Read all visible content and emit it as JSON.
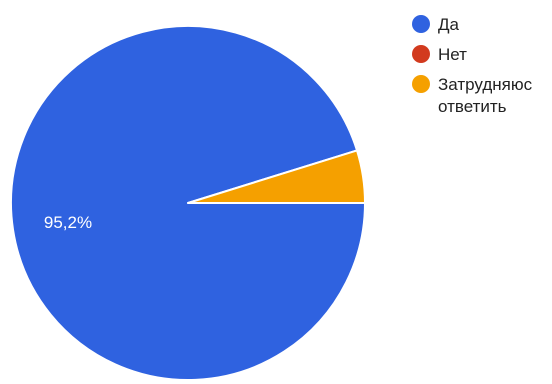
{
  "chart_data": {
    "type": "pie",
    "slices": [
      {
        "label": "Да",
        "value": 95.2,
        "display": "95,2%",
        "color": "#2f62e0"
      },
      {
        "label": "Нет",
        "value": 0,
        "display": "",
        "color": "#d23a1e"
      },
      {
        "label": [
          "Затрудняюс",
          "ответить"
        ],
        "value": 4.8,
        "display": "",
        "color": "#f5a000"
      }
    ],
    "legend_position": "top-right"
  }
}
